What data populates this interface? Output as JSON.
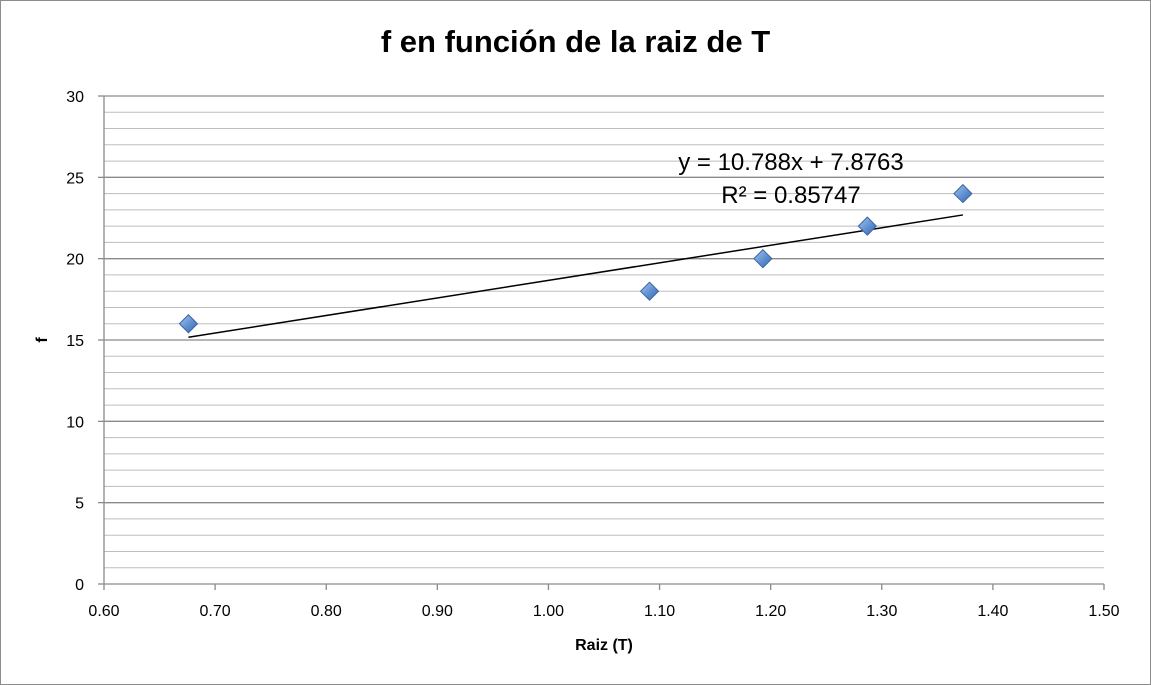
{
  "chart_data": {
    "type": "scatter",
    "title": "f en función de la raiz de T",
    "xlabel": "Raiz (T)",
    "ylabel": "f",
    "xlim": [
      0.6,
      1.5
    ],
    "ylim": [
      0,
      30
    ],
    "x_ticks": [
      "0.60",
      "0.70",
      "0.80",
      "0.90",
      "1.00",
      "1.10",
      "1.20",
      "1.30",
      "1.40",
      "1.50"
    ],
    "y_ticks": [
      "0",
      "5",
      "10",
      "15",
      "20",
      "25",
      "30"
    ],
    "grid": true,
    "series": [
      {
        "x": [
          0.676,
          1.091,
          1.193,
          1.287,
          1.373
        ],
        "y": [
          16,
          18,
          20,
          22,
          24
        ],
        "marker": "diamond",
        "color": "#4f81bd"
      }
    ],
    "trendline": {
      "type": "linear",
      "slope": 10.788,
      "intercept": 7.8763,
      "x_range": [
        0.676,
        1.373
      ],
      "equation_label": "y = 10.788x + 7.8763",
      "r2_label": "R² = 0.85747"
    }
  }
}
